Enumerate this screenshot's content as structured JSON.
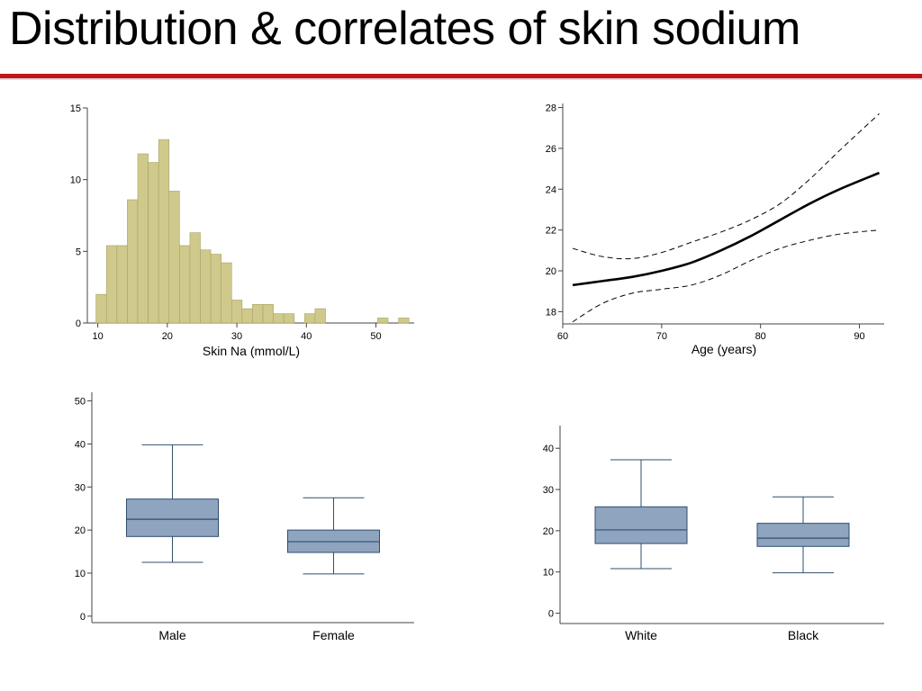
{
  "title": "Distribution & correlates of skin sodium",
  "colors": {
    "accent_rule": "#c0151b",
    "hist_fill": "#cfc98c",
    "hist_stroke": "#a8a266",
    "box_fill": "#8ea4bf",
    "box_stroke": "#2f4f6f"
  },
  "chart_data": [
    {
      "type": "bar",
      "subtype": "histogram",
      "title": "",
      "xlabel": "Skin Na (mmol/L)",
      "ylabel": "",
      "xlim": [
        8.5,
        55.5
      ],
      "ylim": [
        0,
        15
      ],
      "xticks": [
        "10",
        "20",
        "30",
        "40",
        "50"
      ],
      "yticks": [
        "0",
        "5",
        "10",
        "15"
      ],
      "bin_width": 1.5,
      "bins": [
        {
          "start": 9.75,
          "count": 2
        },
        {
          "start": 11.25,
          "count": 5.4
        },
        {
          "start": 12.75,
          "count": 5.4
        },
        {
          "start": 14.25,
          "count": 8.6
        },
        {
          "start": 15.75,
          "count": 11.8
        },
        {
          "start": 17.25,
          "count": 11.2
        },
        {
          "start": 18.75,
          "count": 12.8
        },
        {
          "start": 20.25,
          "count": 9.2
        },
        {
          "start": 21.75,
          "count": 5.4
        },
        {
          "start": 23.25,
          "count": 6.3
        },
        {
          "start": 24.75,
          "count": 5.1
        },
        {
          "start": 26.25,
          "count": 4.8
        },
        {
          "start": 27.75,
          "count": 4.2
        },
        {
          "start": 29.25,
          "count": 1.6
        },
        {
          "start": 30.75,
          "count": 1.0
        },
        {
          "start": 32.25,
          "count": 1.3
        },
        {
          "start": 33.75,
          "count": 1.3
        },
        {
          "start": 35.25,
          "count": 0.65
        },
        {
          "start": 36.75,
          "count": 0.65
        },
        {
          "start": 39.75,
          "count": 0.65
        },
        {
          "start": 41.25,
          "count": 1.0
        },
        {
          "start": 50.25,
          "count": 0.35
        },
        {
          "start": 53.25,
          "count": 0.35
        }
      ]
    },
    {
      "type": "line",
      "title": "",
      "xlabel": "Age (years)",
      "ylabel": "",
      "xlim": [
        60,
        92.5
      ],
      "ylim": [
        17.4,
        28.2
      ],
      "xticks": [
        "60",
        "70",
        "80",
        "90"
      ],
      "yticks": [
        "18",
        "20",
        "22",
        "24",
        "26",
        "28"
      ],
      "x": [
        61,
        64,
        67,
        70,
        73,
        76,
        79,
        82,
        85,
        88,
        92
      ],
      "series": [
        {
          "style": "solid",
          "values": [
            19.3,
            19.5,
            19.7,
            20.0,
            20.4,
            21.0,
            21.7,
            22.5,
            23.3,
            24.0,
            24.8
          ]
        },
        {
          "style": "dashed",
          "values": [
            17.5,
            18.4,
            18.9,
            19.1,
            19.3,
            19.8,
            20.5,
            21.1,
            21.5,
            21.8,
            22.0
          ]
        },
        {
          "style": "dashed",
          "values": [
            21.1,
            20.7,
            20.6,
            20.9,
            21.4,
            21.9,
            22.5,
            23.3,
            24.5,
            25.9,
            27.7
          ]
        }
      ]
    },
    {
      "type": "box",
      "title": "",
      "ylim": [
        -1.5,
        52
      ],
      "yticks": [
        "0",
        "10",
        "20",
        "30",
        "40",
        "50"
      ],
      "categories": [
        "Male",
        "Female"
      ],
      "boxes": [
        {
          "whisker_low": 12.5,
          "q1": 18.5,
          "median": 22.5,
          "q3": 27.2,
          "whisker_high": 39.8
        },
        {
          "whisker_low": 9.8,
          "q1": 14.8,
          "median": 17.3,
          "q3": 20.0,
          "whisker_high": 27.5
        }
      ]
    },
    {
      "type": "box",
      "title": "",
      "ylim": [
        -2.5,
        45.5
      ],
      "yticks": [
        "0",
        "10",
        "20",
        "30",
        "40"
      ],
      "categories": [
        "White",
        "Black"
      ],
      "boxes": [
        {
          "whisker_low": 10.8,
          "q1": 16.9,
          "median": 20.2,
          "q3": 25.8,
          "whisker_high": 37.2
        },
        {
          "whisker_low": 9.8,
          "q1": 16.2,
          "median": 18.2,
          "q3": 21.8,
          "whisker_high": 28.2
        }
      ]
    }
  ]
}
